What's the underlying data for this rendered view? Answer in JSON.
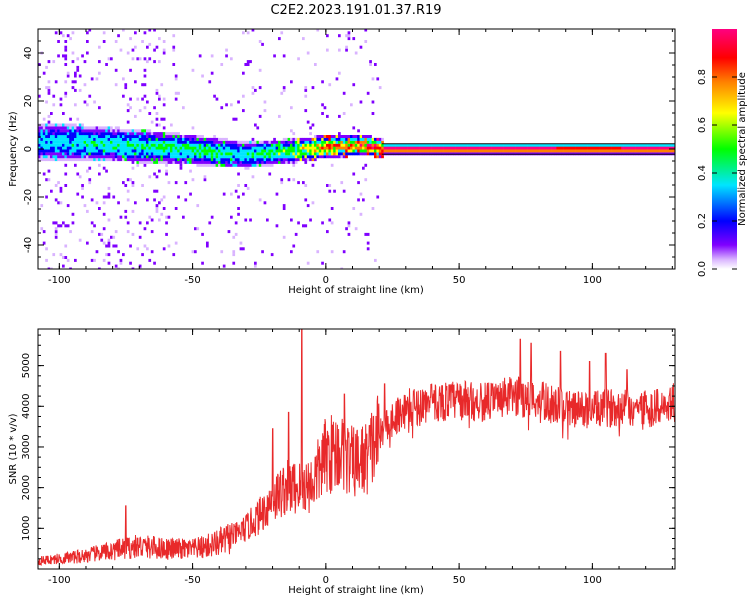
{
  "title": "C2E2.2023.191.01.37.R19",
  "chart_data": [
    {
      "type": "heatmap",
      "xlabel": "Height of straight line (km)",
      "ylabel": "Frequency (Hz)",
      "xlim": [
        -108,
        131
      ],
      "ylim": [
        -50,
        50
      ],
      "xticks": [
        -100,
        -50,
        0,
        50,
        100
      ],
      "yticks": [
        40,
        20,
        0,
        -20,
        -40
      ],
      "colorbar": {
        "label": "Normalized spectral amplitude",
        "range": [
          0.0,
          1.0
        ],
        "ticks": [
          0.0,
          0.2,
          0.4,
          0.6,
          0.8
        ],
        "colors": [
          "#ffffff",
          "#d9b3ff",
          "#8000ff",
          "#0000ff",
          "#00e5ff",
          "#00ff00",
          "#ffff00",
          "#ff8000",
          "#ff0000",
          "#ff0080"
        ]
      },
      "ridge": {
        "description_x": [
          -108,
          -90,
          -75,
          -60,
          -45,
          -30,
          -15,
          0,
          15,
          21,
          60,
          100,
          131
        ],
        "frequency_hz": [
          3,
          2.5,
          1.5,
          0.5,
          -1,
          -2.5,
          -1,
          1,
          1.5,
          0,
          0,
          0,
          0
        ],
        "peak_amplitude": [
          0.3,
          0.35,
          0.4,
          0.45,
          0.45,
          0.35,
          0.5,
          0.8,
          0.85,
          1.0,
          1.0,
          0.95,
          1.0
        ]
      },
      "grid": false
    },
    {
      "type": "line",
      "xlabel": "Height of straight line (km)",
      "ylabel": "SNR (10 * v/v)",
      "xlim": [
        -108,
        131
      ],
      "ylim": [
        0,
        5900
      ],
      "xticks": [
        -100,
        -50,
        0,
        50,
        100
      ],
      "yticks": [
        1000,
        2000,
        3000,
        4000,
        5000
      ],
      "color": "#e8292a",
      "trend": {
        "x": [
          -108,
          -100,
          -90,
          -80,
          -70,
          -60,
          -50,
          -45,
          -40,
          -35,
          -30,
          -25,
          -20,
          -15,
          -10,
          -5,
          0,
          5,
          10,
          15,
          20,
          25,
          30,
          40,
          50,
          60,
          70,
          80,
          90,
          100,
          110,
          120,
          131
        ],
        "snr": [
          200,
          250,
          330,
          450,
          560,
          500,
          480,
          550,
          650,
          800,
          1000,
          1300,
          1700,
          2000,
          2000,
          2100,
          2800,
          2900,
          2600,
          2700,
          3300,
          3700,
          3950,
          4100,
          4150,
          4100,
          4250,
          4150,
          3950,
          3900,
          4000,
          3950,
          4000
        ]
      },
      "spikes": [
        {
          "x": -75,
          "snr": 1550
        },
        {
          "x": -20,
          "snr": 3450
        },
        {
          "x": -14,
          "snr": 3850
        },
        {
          "x": -9,
          "snr": 5900
        },
        {
          "x": 7,
          "snr": 4300
        },
        {
          "x": 22,
          "snr": 4550
        },
        {
          "x": 73,
          "snr": 5650
        },
        {
          "x": 77,
          "snr": 5550
        },
        {
          "x": 88,
          "snr": 5350
        },
        {
          "x": 99,
          "snr": 5100
        },
        {
          "x": 105,
          "snr": 5300
        },
        {
          "x": 113,
          "snr": 4900
        }
      ],
      "grid": false
    }
  ]
}
